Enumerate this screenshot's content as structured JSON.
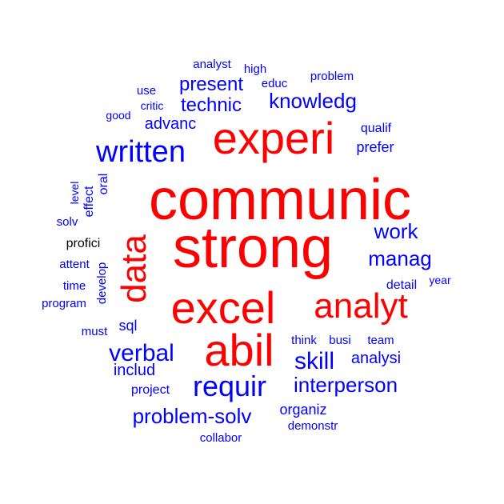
{
  "colors": {
    "top": "#ff0000",
    "rest": "#0000ff"
  },
  "words": [
    {
      "id": "communic",
      "text": "communic",
      "color": "top"
    },
    {
      "id": "strong",
      "text": "strong",
      "color": "top"
    },
    {
      "id": "experi",
      "text": "experi",
      "color": "top"
    },
    {
      "id": "excel",
      "text": "excel",
      "color": "top"
    },
    {
      "id": "analyt",
      "text": "analyt",
      "color": "top"
    },
    {
      "id": "abil",
      "text": "abil",
      "color": "top"
    },
    {
      "id": "data",
      "text": "data",
      "color": "top"
    },
    {
      "id": "written",
      "text": "written",
      "color": "rest"
    },
    {
      "id": "requir",
      "text": "requir",
      "color": "rest"
    },
    {
      "id": "verbal",
      "text": "verbal",
      "color": "rest"
    },
    {
      "id": "skill",
      "text": "skill",
      "color": "rest"
    },
    {
      "id": "knowledg",
      "text": "knowledg",
      "color": "rest"
    },
    {
      "id": "problem-solv",
      "text": "problem-solv",
      "color": "rest"
    },
    {
      "id": "interperson",
      "text": "interperson",
      "color": "rest"
    },
    {
      "id": "manag",
      "text": "manag",
      "color": "rest"
    },
    {
      "id": "work",
      "text": "work",
      "color": "rest"
    },
    {
      "id": "technic",
      "text": "technic",
      "color": "rest"
    },
    {
      "id": "present",
      "text": "present",
      "color": "rest"
    },
    {
      "id": "analysi",
      "text": "analysi",
      "color": "rest"
    },
    {
      "id": "advanc",
      "text": "advanc",
      "color": "rest"
    },
    {
      "id": "prefer",
      "text": "prefer",
      "color": "rest"
    },
    {
      "id": "includ",
      "text": "includ",
      "color": "rest"
    },
    {
      "id": "organiz",
      "text": "organiz",
      "color": "rest"
    },
    {
      "id": "sql",
      "text": "sql",
      "color": "rest"
    },
    {
      "id": "detail",
      "text": "detail",
      "color": "rest"
    },
    {
      "id": "qualif",
      "text": "qualif",
      "color": "rest"
    },
    {
      "id": "educ",
      "text": "educ",
      "color": "rest"
    },
    {
      "id": "high",
      "text": "high",
      "color": "rest"
    },
    {
      "id": "analyst",
      "text": "analyst",
      "color": "rest"
    },
    {
      "id": "problem",
      "text": "problem",
      "color": "rest"
    },
    {
      "id": "use",
      "text": "use",
      "color": "rest"
    },
    {
      "id": "critic",
      "text": "critic",
      "color": "rest"
    },
    {
      "id": "good",
      "text": "good",
      "color": "rest"
    },
    {
      "id": "think",
      "text": "think",
      "color": "rest"
    },
    {
      "id": "busi",
      "text": "busi",
      "color": "rest"
    },
    {
      "id": "team",
      "text": "team",
      "color": "rest"
    },
    {
      "id": "year",
      "text": "year",
      "color": "rest"
    },
    {
      "id": "proffici",
      "text": "profici",
      "color": "rest"
    },
    {
      "id": "attent",
      "text": "attent",
      "color": "rest"
    },
    {
      "id": "time",
      "text": "time",
      "color": "rest"
    },
    {
      "id": "program",
      "text": "program",
      "color": "rest"
    },
    {
      "id": "must",
      "text": "must",
      "color": "rest"
    },
    {
      "id": "solv",
      "text": "solv",
      "color": "rest"
    },
    {
      "id": "project",
      "text": "project",
      "color": "rest"
    },
    {
      "id": "collabor",
      "text": "collabor",
      "color": "rest"
    },
    {
      "id": "demonstr",
      "text": "demonstr",
      "color": "rest"
    },
    {
      "id": "level",
      "text": "level",
      "color": "rest"
    },
    {
      "id": "effect",
      "text": "effect",
      "color": "rest"
    },
    {
      "id": "oral",
      "text": "oral",
      "color": "rest"
    },
    {
      "id": "develop",
      "text": "develop",
      "color": "rest"
    }
  ]
}
